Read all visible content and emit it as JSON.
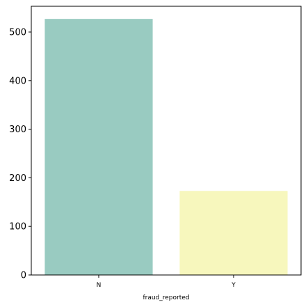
{
  "chart_data": {
    "type": "bar",
    "categories": [
      "N",
      "Y"
    ],
    "values": [
      527,
      173
    ],
    "colors": [
      "#99cbc1",
      "#f7f7bd"
    ],
    "xlabel": "fraud_reported",
    "ylabel": "",
    "ylim": [
      0,
      553
    ],
    "yticks": [
      0,
      100,
      200,
      300,
      400,
      500
    ],
    "grid": false,
    "legend": "none"
  }
}
